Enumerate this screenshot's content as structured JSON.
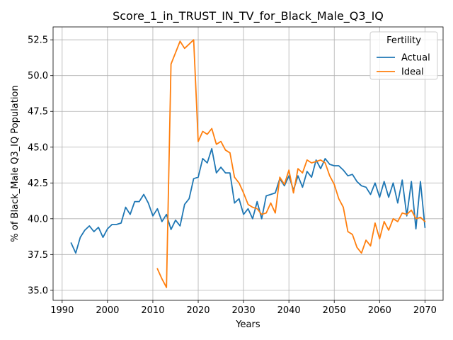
{
  "chart_data": {
    "type": "line",
    "title": "Score_1_in_TRUST_IN_TV_for_Black_Male_Q3_IQ",
    "xlabel": "Years",
    "ylabel": "% of Black_Male Q3_IQ Population",
    "xlim": [
      1988.0,
      2074.0
    ],
    "ylim": [
      34.3,
      53.4
    ],
    "xticks": [
      1990,
      2000,
      2010,
      2020,
      2030,
      2040,
      2050,
      2060,
      2070
    ],
    "yticks": [
      35.0,
      37.5,
      40.0,
      42.5,
      45.0,
      47.5,
      50.0,
      52.5
    ],
    "grid": true,
    "legend": {
      "title": "Fertility",
      "position": "top-right"
    },
    "series": [
      {
        "name": "Actual",
        "color": "#1f77b4",
        "x": [
          1992,
          1993,
          1994,
          1995,
          1996,
          1997,
          1998,
          1999,
          2000,
          2001,
          2002,
          2003,
          2004,
          2005,
          2006,
          2007,
          2008,
          2009,
          2010,
          2011,
          2012,
          2013,
          2014,
          2015,
          2016,
          2017,
          2018,
          2019,
          2020,
          2021,
          2022,
          2023,
          2024,
          2025,
          2026,
          2027,
          2028,
          2029,
          2030,
          2031,
          2032,
          2033,
          2034,
          2035,
          2036,
          2037,
          2038,
          2039,
          2040,
          2041,
          2042,
          2043,
          2044,
          2045,
          2046,
          2047,
          2048,
          2049,
          2050,
          2051,
          2052,
          2053,
          2054,
          2055,
          2056,
          2057,
          2058,
          2059,
          2060,
          2061,
          2062,
          2063,
          2064,
          2065,
          2066,
          2067,
          2068,
          2069,
          2070
        ],
        "values": [
          38.3,
          37.6,
          38.7,
          39.2,
          39.5,
          39.1,
          39.4,
          38.7,
          39.3,
          39.6,
          39.6,
          39.7,
          40.8,
          40.3,
          41.2,
          41.2,
          41.7,
          41.1,
          40.2,
          40.7,
          39.8,
          40.3,
          39.25,
          39.9,
          39.5,
          41.0,
          41.4,
          42.8,
          42.9,
          44.2,
          43.9,
          44.9,
          43.2,
          43.6,
          43.2,
          43.2,
          41.1,
          41.4,
          40.3,
          40.7,
          40.0,
          41.2,
          40.0,
          41.6,
          41.7,
          41.8,
          42.8,
          42.3,
          43.0,
          42.0,
          43.0,
          42.2,
          43.3,
          42.9,
          44.1,
          43.5,
          44.2,
          43.8,
          43.7,
          43.7,
          43.4,
          43.0,
          43.1,
          42.6,
          42.3,
          42.2,
          41.7,
          42.5,
          41.5,
          42.6,
          41.5,
          42.5,
          41.1,
          42.7,
          40.2,
          42.6,
          39.3,
          42.6,
          39.4
        ]
      },
      {
        "name": "Ideal",
        "color": "#ff7f0e",
        "x": [
          2011,
          2012,
          2013,
          2014,
          2015,
          2016,
          2017,
          2018,
          2019,
          2019.5,
          2020,
          2021,
          2022,
          2023,
          2024,
          2025,
          2026,
          2027,
          2028,
          2029,
          2030,
          2031,
          2032,
          2033,
          2034,
          2035,
          2036,
          2037,
          2038,
          2039,
          2040,
          2041,
          2042,
          2043,
          2044,
          2045,
          2046,
          2047,
          2048,
          2049,
          2050,
          2051,
          2052,
          2053,
          2054,
          2055,
          2056,
          2057,
          2058,
          2059,
          2060,
          2061,
          2062,
          2063,
          2064,
          2065,
          2066,
          2067,
          2068,
          2069,
          2070
        ],
        "values": [
          36.5,
          35.8,
          35.2,
          50.8,
          51.6,
          52.4,
          51.9,
          52.2,
          52.5,
          49.0,
          45.4,
          46.1,
          45.9,
          46.3,
          45.2,
          45.4,
          44.8,
          44.6,
          42.9,
          42.5,
          41.8,
          41.0,
          40.8,
          40.7,
          40.3,
          40.4,
          41.1,
          40.4,
          42.9,
          42.4,
          43.4,
          41.8,
          43.5,
          43.2,
          44.1,
          43.9,
          44.0,
          44.1,
          43.9,
          43.0,
          42.4,
          41.4,
          40.8,
          39.1,
          38.9,
          38.0,
          37.6,
          38.5,
          38.1,
          39.7,
          38.6,
          39.8,
          39.2,
          40.0,
          39.8,
          40.4,
          40.3,
          40.6,
          40.0,
          40.1,
          39.8
        ]
      }
    ]
  }
}
